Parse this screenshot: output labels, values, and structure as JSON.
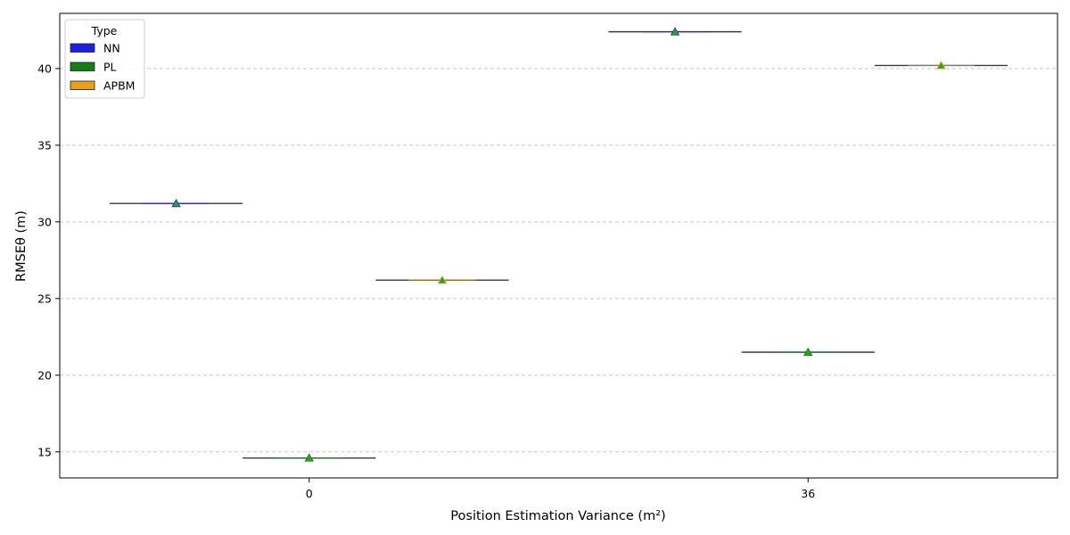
{
  "chart_data": {
    "type": "box",
    "title": "",
    "xlabel": "Position Estimation Variance (m²)",
    "ylabel": "RMSEθ (m)",
    "ylim": [
      13.3,
      43.6
    ],
    "yticks": [
      15,
      20,
      25,
      30,
      35,
      40
    ],
    "grid": "y-dashed",
    "categories": [
      "0",
      "36"
    ],
    "legend": {
      "title": "Type",
      "placement": "top-left",
      "entries": [
        "NN",
        "PL",
        "APBM"
      ]
    },
    "series": [
      {
        "name": "NN",
        "color": "#1f1fe0",
        "values": [
          31.2,
          42.4
        ]
      },
      {
        "name": "PL",
        "color": "#1a7a1a",
        "values": [
          14.6,
          21.5
        ]
      },
      {
        "name": "APBM",
        "color": "#e8a020",
        "values": [
          26.2,
          40.2
        ]
      }
    ],
    "mean_marker_color": "#2ca02c"
  }
}
